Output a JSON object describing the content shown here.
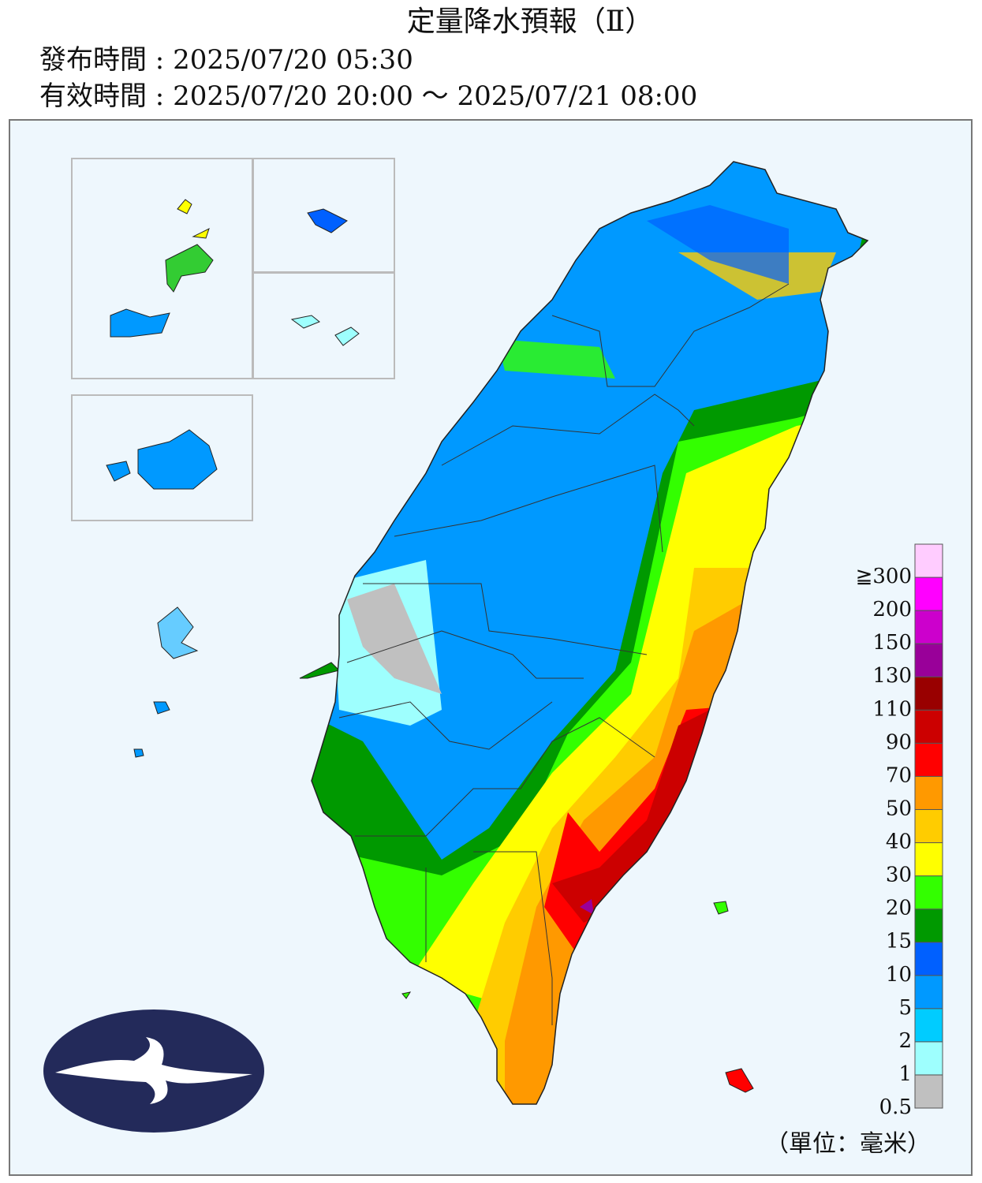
{
  "header": {
    "title": "定量降水預報（Ⅱ）",
    "issued": "發布時間 : 2025/07/20 05:30",
    "valid": "有效時間 : 2025/07/20 20:00 ～ 2025/07/21 08:00"
  },
  "legend": {
    "labels": [
      "0.5",
      "1",
      "2",
      "5",
      "10",
      "15",
      "20",
      "30",
      "40",
      "50",
      "70",
      "90",
      "110",
      "130",
      "150",
      "200",
      "≧300"
    ],
    "colors": [
      "#c0c0c0",
      "#9efffe",
      "#00ccff",
      "#0099ff",
      "#0060ff",
      "#009900",
      "#33ff00",
      "#ffff00",
      "#ffcc00",
      "#ff9900",
      "#ff0000",
      "#cc0000",
      "#990000",
      "#990099",
      "#cc00cc",
      "#ff00ff",
      "#ffccff"
    ],
    "unit": "（單位：毫米）"
  }
}
